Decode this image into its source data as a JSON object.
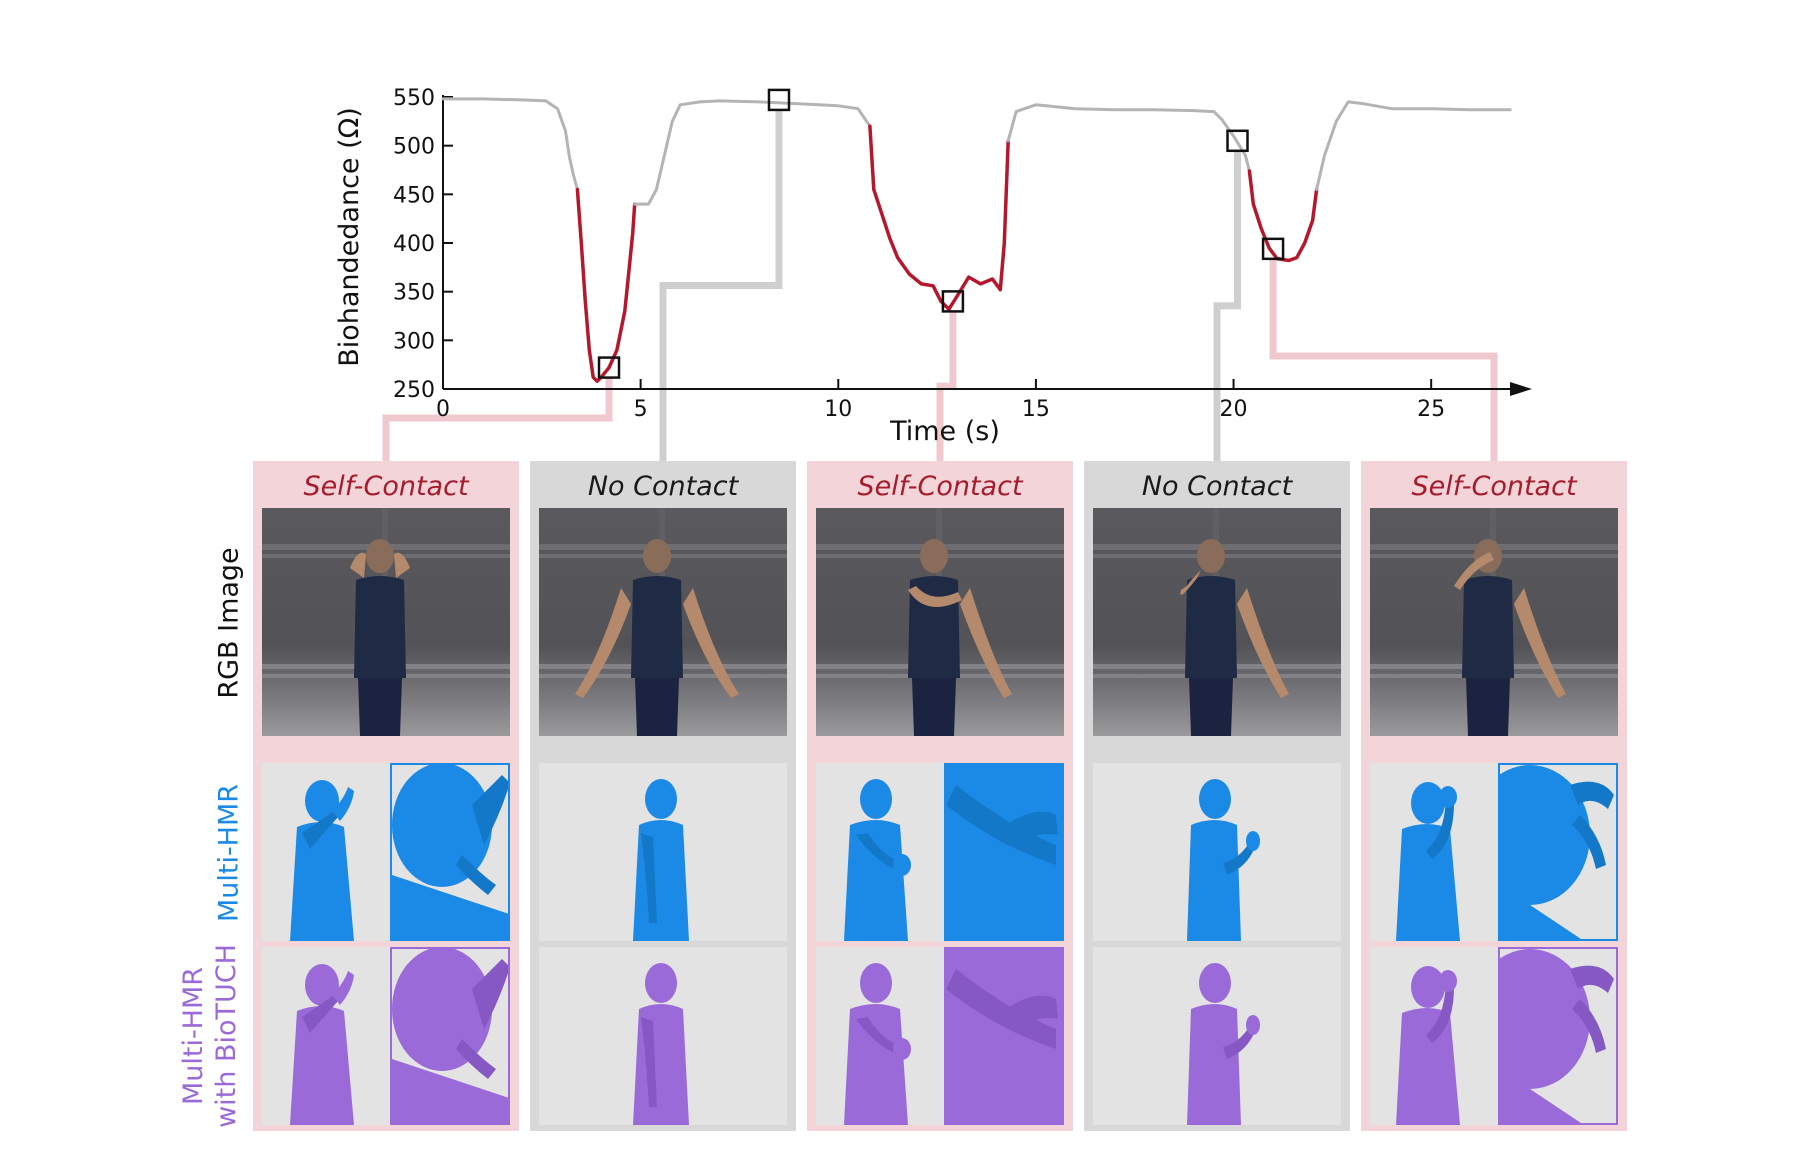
{
  "chart_data": {
    "type": "line",
    "title": "",
    "xlabel": "Time (s)",
    "ylabel": "Biohandedance (Ω)",
    "xlim": [
      0,
      27.5
    ],
    "ylim": [
      250,
      550
    ],
    "xticks": [
      "0",
      "5",
      "10",
      "15",
      "20",
      "25"
    ],
    "yticks": [
      "250",
      "300",
      "350",
      "400",
      "450",
      "500",
      "550"
    ],
    "colors": {
      "no_contact": "#b4b4b4",
      "self_contact": "#b5182c"
    },
    "series": [
      {
        "segments": [
          {
            "contact": false,
            "points": [
              [
                0,
                548
              ],
              [
                1,
                548
              ],
              [
                2,
                547
              ],
              [
                2.6,
                546
              ],
              [
                2.9,
                538
              ],
              [
                3.1,
                515
              ],
              [
                3.2,
                488
              ],
              [
                3.3,
                470
              ],
              [
                3.4,
                455
              ]
            ]
          },
          {
            "contact": true,
            "points": [
              [
                3.4,
                455
              ],
              [
                3.5,
                400
              ],
              [
                3.6,
                340
              ],
              [
                3.7,
                290
              ],
              [
                3.8,
                262
              ],
              [
                3.9,
                258
              ],
              [
                4.0,
                262
              ],
              [
                4.2,
                272
              ],
              [
                4.4,
                290
              ],
              [
                4.6,
                330
              ],
              [
                4.7,
                370
              ],
              [
                4.8,
                410
              ],
              [
                4.85,
                440
              ]
            ]
          },
          {
            "contact": false,
            "points": [
              [
                4.85,
                440
              ],
              [
                5.2,
                440
              ],
              [
                5.4,
                455
              ],
              [
                5.6,
                490
              ],
              [
                5.8,
                525
              ],
              [
                6.0,
                542
              ],
              [
                6.5,
                545
              ],
              [
                7,
                546
              ],
              [
                8,
                545
              ],
              [
                9,
                543
              ],
              [
                10,
                541
              ],
              [
                10.5,
                538
              ],
              [
                10.8,
                520
              ]
            ]
          },
          {
            "contact": true,
            "points": [
              [
                10.8,
                520
              ],
              [
                10.9,
                455
              ],
              [
                11.1,
                430
              ],
              [
                11.3,
                405
              ],
              [
                11.5,
                385
              ],
              [
                11.8,
                368
              ],
              [
                12.1,
                358
              ],
              [
                12.4,
                356
              ],
              [
                12.6,
                340
              ],
              [
                12.8,
                332
              ],
              [
                13.0,
                345
              ],
              [
                13.3,
                365
              ],
              [
                13.6,
                358
              ],
              [
                13.9,
                363
              ],
              [
                14.1,
                352
              ],
              [
                14.2,
                400
              ],
              [
                14.3,
                505
              ]
            ]
          },
          {
            "contact": false,
            "points": [
              [
                14.3,
                505
              ],
              [
                14.5,
                535
              ],
              [
                15,
                542
              ],
              [
                16,
                538
              ],
              [
                17,
                537
              ],
              [
                18,
                537
              ],
              [
                19,
                536
              ],
              [
                19.5,
                535
              ],
              [
                19.7,
                527
              ],
              [
                20.0,
                510
              ],
              [
                20.3,
                490
              ],
              [
                20.4,
                474
              ]
            ]
          },
          {
            "contact": true,
            "points": [
              [
                20.4,
                474
              ],
              [
                20.5,
                440
              ],
              [
                20.7,
                415
              ],
              [
                20.9,
                395
              ],
              [
                21.1,
                384
              ],
              [
                21.4,
                382
              ],
              [
                21.6,
                385
              ],
              [
                21.8,
                400
              ],
              [
                22.0,
                423
              ],
              [
                22.1,
                455
              ]
            ]
          },
          {
            "contact": false,
            "points": [
              [
                22.1,
                455
              ],
              [
                22.3,
                490
              ],
              [
                22.6,
                525
              ],
              [
                22.9,
                545
              ],
              [
                23.3,
                543
              ],
              [
                24,
                538
              ],
              [
                25,
                538
              ],
              [
                26,
                537
              ],
              [
                27,
                537
              ]
            ]
          }
        ]
      }
    ],
    "markers": [
      [
        4.2,
        272
      ],
      [
        8.5,
        547
      ],
      [
        12.9,
        340
      ],
      [
        20.1,
        505
      ],
      [
        21.0,
        394
      ]
    ]
  },
  "panels": [
    {
      "title": "Self-Contact",
      "contact": true
    },
    {
      "title": "No Contact",
      "contact": false
    },
    {
      "title": "Self-Contact",
      "contact": true
    },
    {
      "title": "No Contact",
      "contact": false
    },
    {
      "title": "Self-Contact",
      "contact": true
    }
  ],
  "row_labels": {
    "rgb": "RGB Image",
    "hmr": "Multi-HMR",
    "biotuch_line1": "Multi-HMR",
    "biotuch_line2": "with BioTUCH"
  },
  "colors": {
    "contact_bg": "#f2d4d9",
    "nocontact_bg": "#d8d8d8",
    "hmr_blue": "#1a8ae6",
    "biotuch_purple": "#9b6ad9"
  }
}
